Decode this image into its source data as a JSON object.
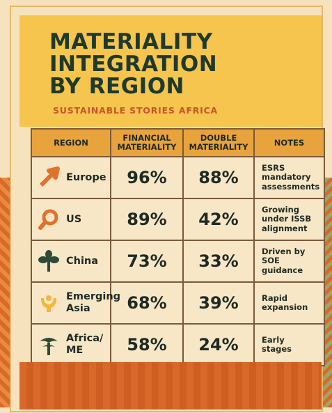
{
  "header": {
    "title": "MATERIALITY\nINTEGRATION\nBY REGION",
    "subtitle": "SUSTAINABLE STORIES AFRICA"
  },
  "table": {
    "columns": [
      "REGION",
      "FINANCIAL\nMATERIALITY",
      "DOUBLE\nMATERIALITY",
      "NOTES"
    ],
    "rows": [
      {
        "icon": "arrow-up-right-icon",
        "region": "Europe",
        "financial": "96%",
        "double": "88%",
        "notes": "ESRS\nmandatory\nassessments"
      },
      {
        "icon": "magnifier-icon",
        "region": "US",
        "financial": "89%",
        "double": "42%",
        "notes": "Growing\nunder ISSB\nalignment"
      },
      {
        "icon": "plant-icon",
        "region": "China",
        "financial": "73%",
        "double": "33%",
        "notes": "Driven by\nSOE\nguidance"
      },
      {
        "icon": "hands-icon",
        "region": "Emerging\nAsia",
        "financial": "68%",
        "double": "39%",
        "notes": "Rapid\nexpansion"
      },
      {
        "icon": "tree-icon",
        "region": "Africa/\nME",
        "financial": "58%",
        "double": "24%",
        "notes": "Early\nstages"
      }
    ]
  },
  "colors": {
    "header_bg": "#f5c54d",
    "table_header_bg": "#e9a33c",
    "accent_orange": "#c9562a",
    "dark_green": "#1f3a2c"
  }
}
